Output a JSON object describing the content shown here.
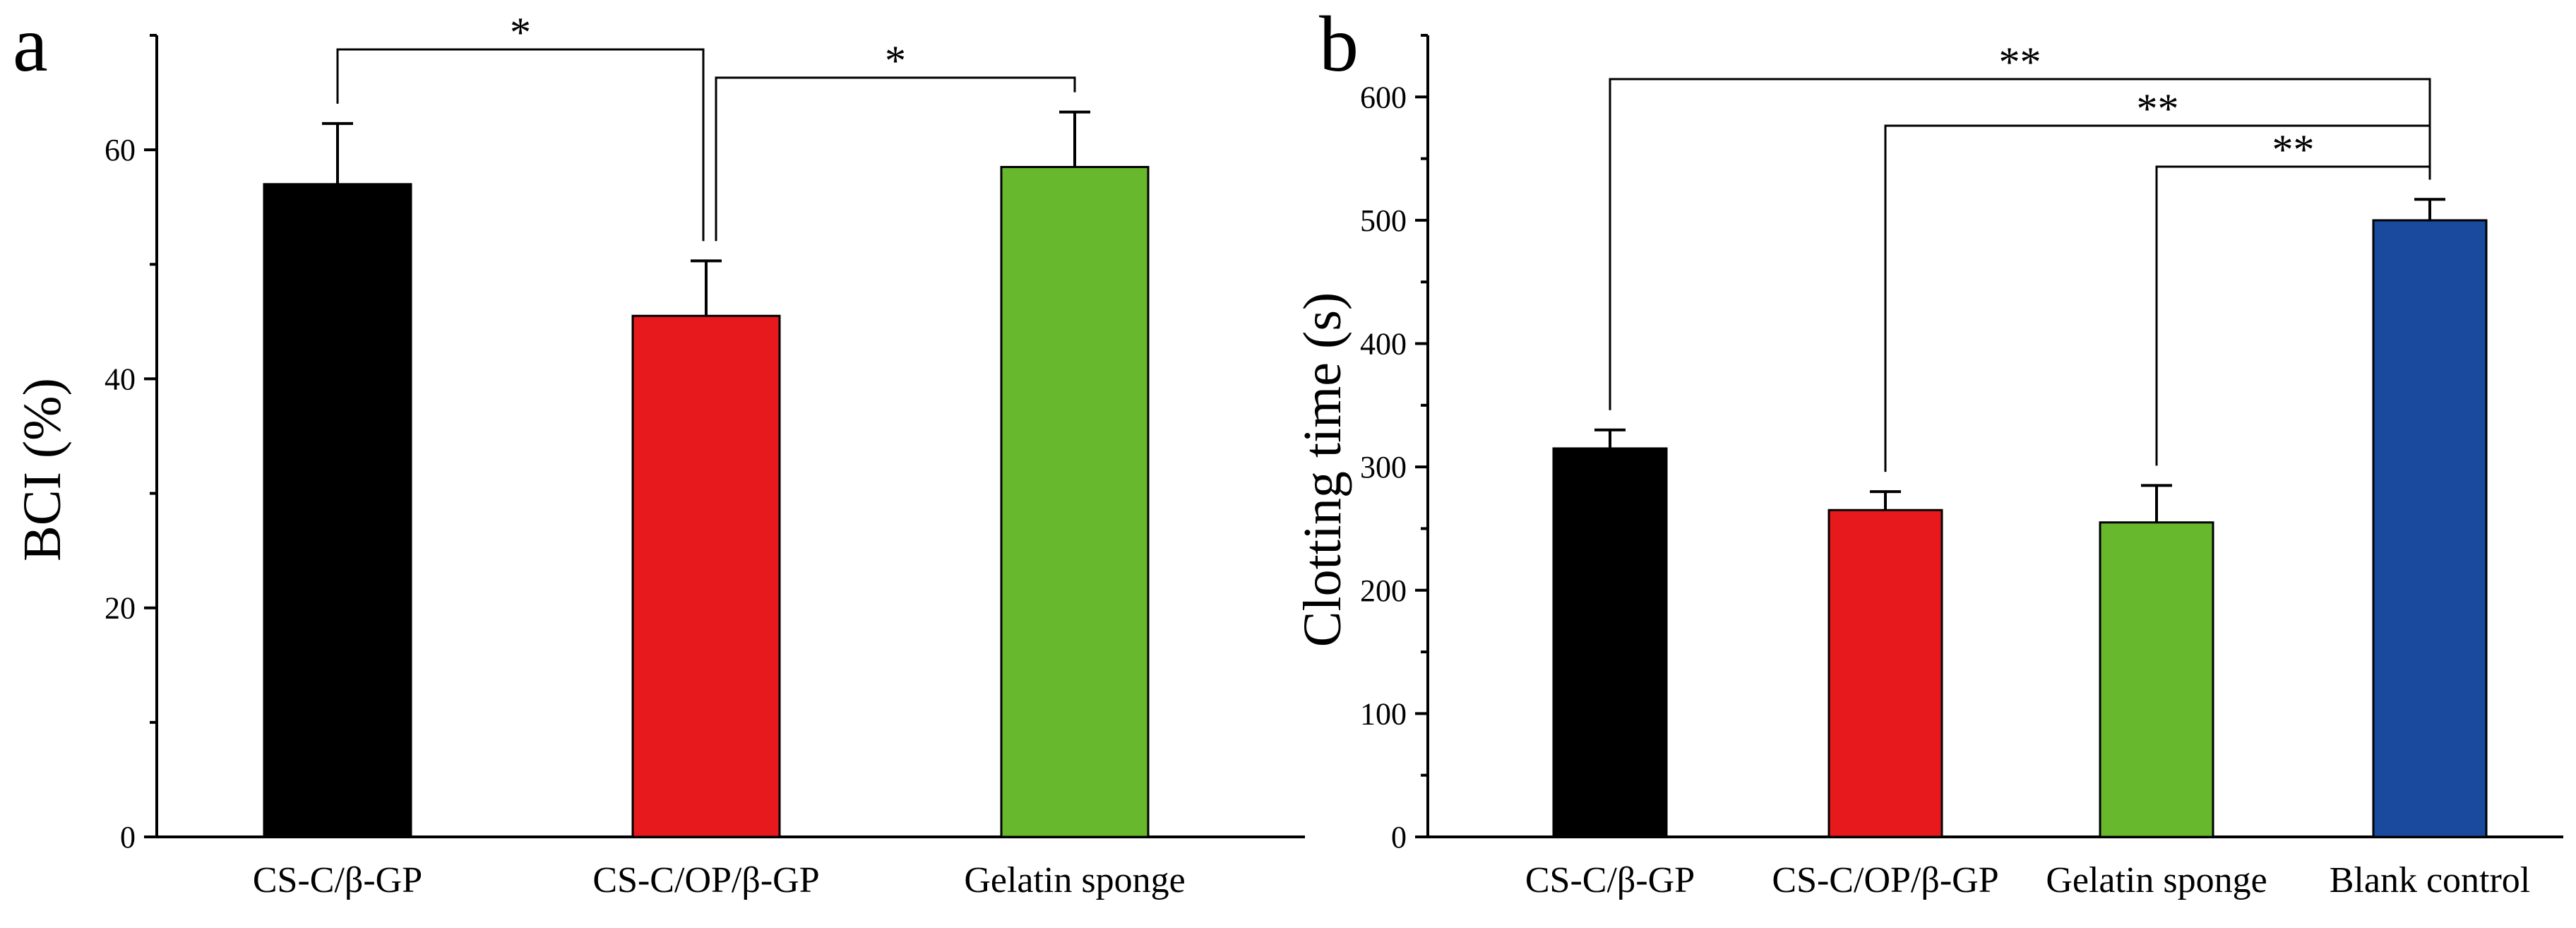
{
  "chart_data": [
    {
      "type": "bar",
      "panel": "a",
      "categories": [
        "CS-C/β-GP",
        "CS-C/OP/β-GP",
        "Gelatin sponge"
      ],
      "values": [
        57,
        45.5,
        58.5
      ],
      "errors": [
        5.3,
        4.8,
        4.8
      ],
      "colors": [
        "#000000",
        "#e8191c",
        "#68b82e"
      ],
      "ylabel": "BCI (%)",
      "ylim": [
        0,
        70
      ],
      "yticks": [
        0,
        20,
        40,
        60
      ],
      "significance": [
        {
          "from": 0,
          "to": 1,
          "label": "*"
        },
        {
          "from": 1,
          "to": 2,
          "label": "*"
        }
      ]
    },
    {
      "type": "bar",
      "panel": "b",
      "categories": [
        "CS-C/β-GP",
        "CS-C/OP/β-GP",
        "Gelatin sponge",
        "Blank control"
      ],
      "values": [
        315,
        265,
        255,
        500
      ],
      "errors": [
        15,
        15,
        30,
        17
      ],
      "colors": [
        "#000000",
        "#e8191c",
        "#68b82e",
        "#1a4a9e"
      ],
      "ylabel": "Clotting time (s)",
      "ylim": [
        0,
        650
      ],
      "yticks": [
        0,
        100,
        200,
        300,
        400,
        500,
        600
      ],
      "significance": [
        {
          "from": 0,
          "to": 3,
          "label": "**"
        },
        {
          "from": 1,
          "to": 3,
          "label": "**"
        },
        {
          "from": 2,
          "to": 3,
          "label": "**"
        }
      ]
    }
  ]
}
